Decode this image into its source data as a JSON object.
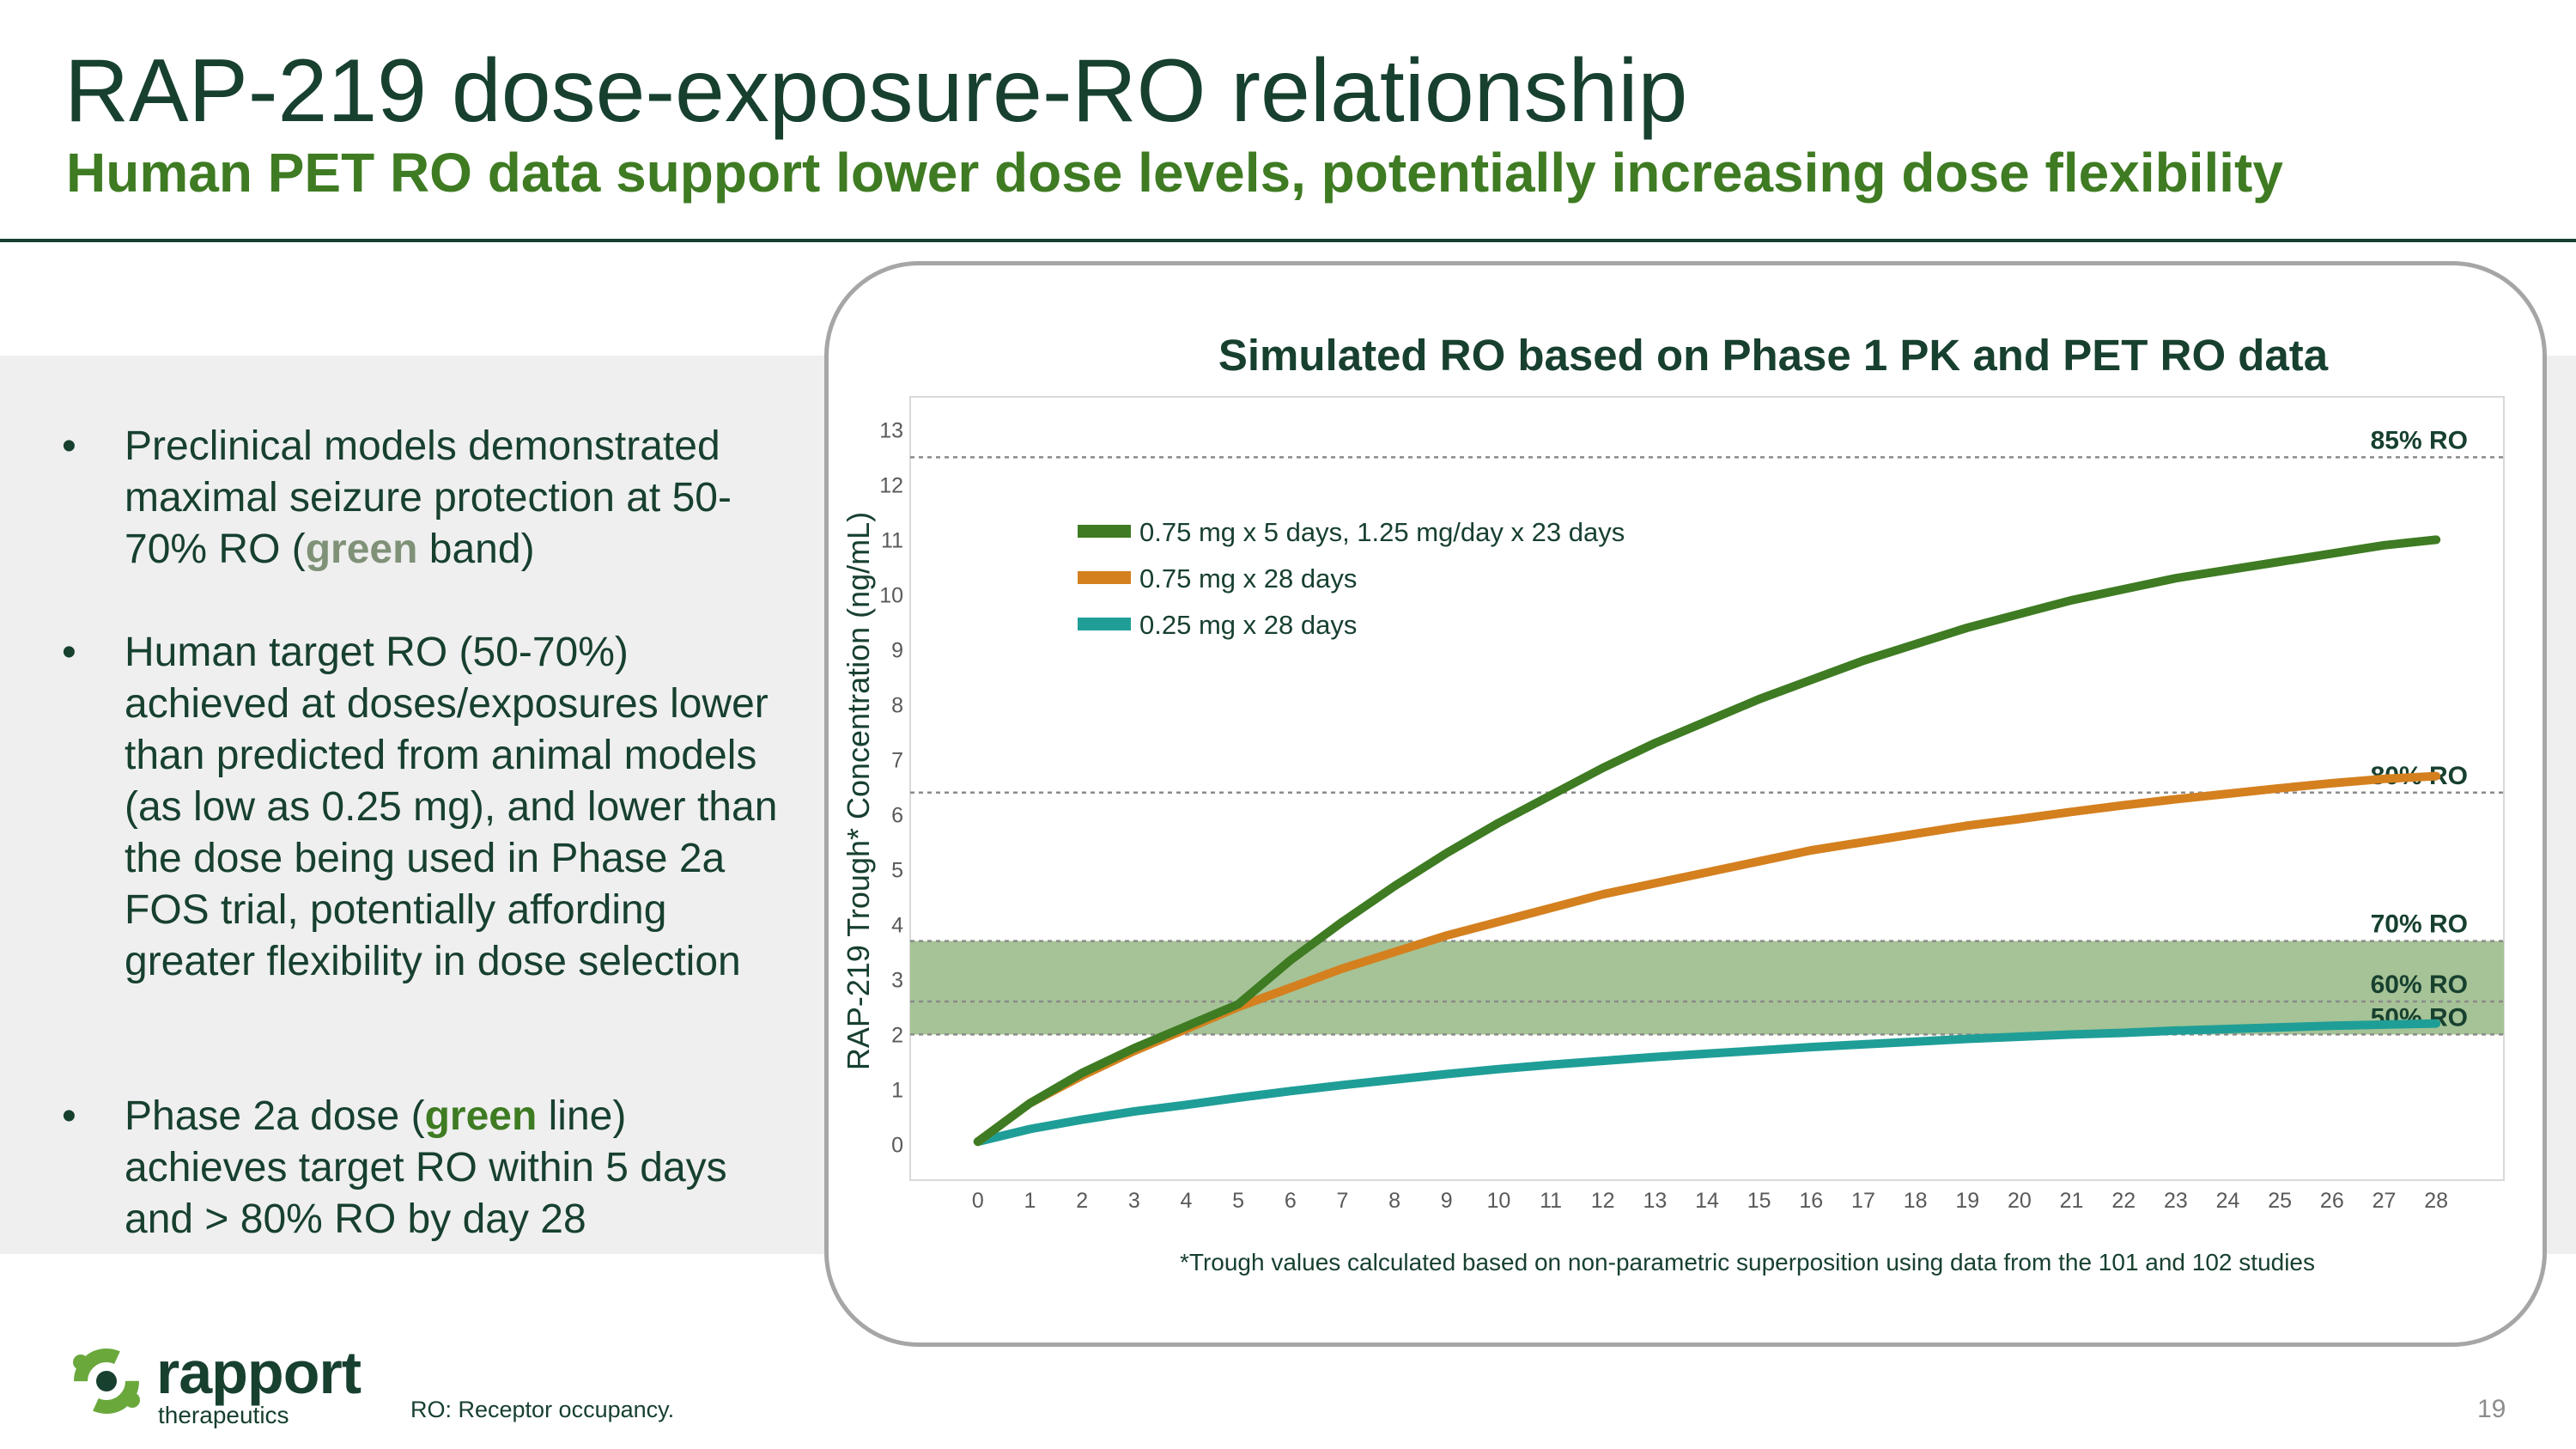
{
  "slide": {
    "title": "RAP-219 dose-exposure-RO relationship",
    "subtitle": "Human PET RO data support lower dose levels, potentially increasing dose flexibility",
    "page_number": "19",
    "footnote": "RO: Receptor occupancy.",
    "logo": {
      "word": "rapport",
      "sub": "therapeutics"
    }
  },
  "bullets": [
    {
      "segments": [
        {
          "t": "Preclinical models demonstrated maximal seizure protection at 50-70% RO (",
          "s": ""
        },
        {
          "t": "green",
          "s": "hl-gray"
        },
        {
          "t": " band)",
          "s": ""
        }
      ]
    },
    {
      "segments": [
        {
          "t": "Human target RO (50-70%) achieved at doses/exposures lower than predicted from animal models (as low as 0.25 mg), and lower than the dose being used in Phase 2a FOS trial, potentially affording greater flexibility in dose selection",
          "s": ""
        }
      ]
    },
    {
      "segments": [
        {
          "t": "Phase 2a dose (",
          "s": ""
        },
        {
          "t": "green",
          "s": "hl-green"
        },
        {
          "t": " line) achieves target RO within 5 days and > 80% RO by day 28",
          "s": ""
        }
      ]
    }
  ],
  "bullet_symbol": "•",
  "chart_data": {
    "type": "line",
    "title": "Simulated RO based on Phase 1 PK and PET RO data",
    "xlabel": "",
    "ylabel": "RAP-219 Trough* Concentration (ng/mL)",
    "footnote": "*Trough values calculated based on non-parametric superposition using data from the 101 and 102 studies",
    "xlim": [
      -1.3,
      29.3
    ],
    "ylim": [
      -0.65,
      13.6
    ],
    "xticks": [
      0,
      1,
      2,
      3,
      4,
      5,
      6,
      7,
      8,
      9,
      10,
      11,
      12,
      13,
      14,
      15,
      16,
      17,
      18,
      19,
      20,
      21,
      22,
      23,
      24,
      25,
      26,
      27,
      28
    ],
    "yticks": [
      0,
      1,
      2,
      3,
      4,
      5,
      6,
      7,
      8,
      9,
      10,
      11,
      12,
      13
    ],
    "grid": false,
    "legend_position": "upper-left",
    "x": [
      0,
      1,
      2,
      3,
      4,
      5,
      6,
      7,
      8,
      9,
      10,
      11,
      12,
      13,
      14,
      15,
      16,
      17,
      18,
      19,
      20,
      21,
      22,
      23,
      24,
      25,
      26,
      27,
      28
    ],
    "series": [
      {
        "name": "0.75 mg x 5 days, 1.25 mg/day x 23 days",
        "color": "#3e7b22",
        "values": [
          0.05,
          0.75,
          1.3,
          1.75,
          2.15,
          2.55,
          3.35,
          4.05,
          4.7,
          5.3,
          5.85,
          6.35,
          6.85,
          7.3,
          7.7,
          8.1,
          8.45,
          8.8,
          9.1,
          9.4,
          9.65,
          9.9,
          10.1,
          10.3,
          10.45,
          10.6,
          10.75,
          10.9,
          11.0
        ]
      },
      {
        "name": "0.75 mg x 28 days",
        "color": "#d4801f",
        "values": [
          0.05,
          0.75,
          1.25,
          1.7,
          2.1,
          2.5,
          2.85,
          3.2,
          3.5,
          3.8,
          4.05,
          4.3,
          4.55,
          4.75,
          4.95,
          5.15,
          5.35,
          5.5,
          5.65,
          5.8,
          5.92,
          6.05,
          6.17,
          6.28,
          6.38,
          6.48,
          6.57,
          6.65,
          6.7
        ]
      },
      {
        "name": "0.25 mg x 28 days",
        "color": "#1f9e97",
        "values": [
          0.05,
          0.28,
          0.45,
          0.6,
          0.72,
          0.85,
          0.97,
          1.08,
          1.18,
          1.28,
          1.37,
          1.45,
          1.52,
          1.59,
          1.65,
          1.71,
          1.77,
          1.82,
          1.87,
          1.92,
          1.96,
          2.0,
          2.03,
          2.07,
          2.1,
          2.13,
          2.16,
          2.18,
          2.2
        ]
      }
    ],
    "reference_lines": [
      {
        "label": "85% RO",
        "y": 12.5
      },
      {
        "label": "80% RO",
        "y": 6.4
      },
      {
        "label": "70% RO",
        "y": 3.7
      },
      {
        "label": "60% RO",
        "y": 2.6
      },
      {
        "label": "50% RO",
        "y": 2.0
      }
    ],
    "band": {
      "y0": 2.0,
      "y1": 3.7,
      "color": "#a5c396"
    }
  }
}
